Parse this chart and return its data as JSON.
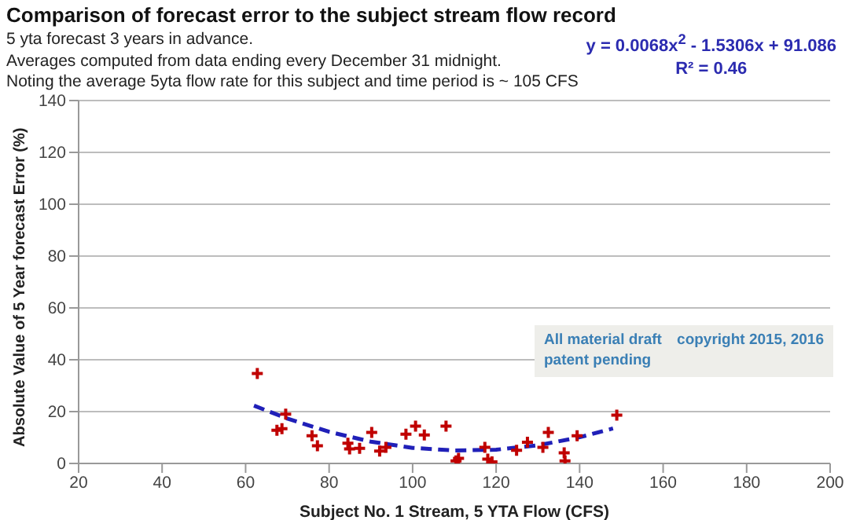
{
  "chart_data": {
    "type": "scatter",
    "title": "Comparison of forecast error to the subject stream flow record",
    "subtitle": "5 yta forecast 3 years in advance.",
    "annotations": [
      "Averages computed from data ending every December 31 midnight.",
      "Noting the average 5yta flow rate for this subject and time period is ~ 105 CFS",
      "y = 0.0068x$^{2}$ - 1.5306x + 91.086",
      "R² = 0.46",
      "All material draft",
      "patent pending",
      "copyright 2015, 2016"
    ],
    "xlabel": "Subject No. 1 Stream, 5 YTA Flow (CFS)",
    "ylabel": "Absolute Value of 5 Year forecast Error (%)",
    "xlim": [
      20,
      200
    ],
    "xticks": [
      20,
      40,
      60,
      80,
      100,
      120,
      140,
      160,
      180,
      200
    ],
    "ylim": [
      0,
      140
    ],
    "yticks": [
      0,
      20,
      40,
      60,
      80,
      100,
      120,
      140
    ],
    "grid": "y",
    "series": [
      {
        "color": "#c00000",
        "marker": "cross",
        "x": [
          62.8,
          69.6,
          67.5,
          68.7,
          75.9,
          77.2,
          84.5,
          84.9,
          87.3,
          90.2,
          92.1,
          93.6,
          98.4,
          100.7,
          102.8,
          108,
          110.4,
          111,
          117.3,
          118,
          119,
          124.9,
          127.5,
          131.2,
          132.5,
          136.3,
          136.5,
          139.4,
          148.9
        ],
        "values": [
          34.7,
          19,
          12.8,
          13.4,
          10.7,
          6.8,
          7.8,
          5.6,
          5.8,
          12,
          4.8,
          6.2,
          11.3,
          14.4,
          11,
          14.4,
          1,
          2,
          6.2,
          1.7,
          0.6,
          5.1,
          8.2,
          6.2,
          12,
          4.1,
          1,
          10.7,
          18.6
        ]
      },
      {
        "type": "line",
        "color": "#2020b8",
        "marker": "none",
        "line_style": "dashed",
        "x": [
          62,
          70,
          80,
          90,
          100,
          110,
          120,
          130,
          140,
          148
        ],
        "values": [
          22.3,
          17.3,
          12.2,
          8.4,
          6.0,
          5.0,
          5.3,
          7.0,
          10.1,
          13.5
        ]
      }
    ]
  }
}
